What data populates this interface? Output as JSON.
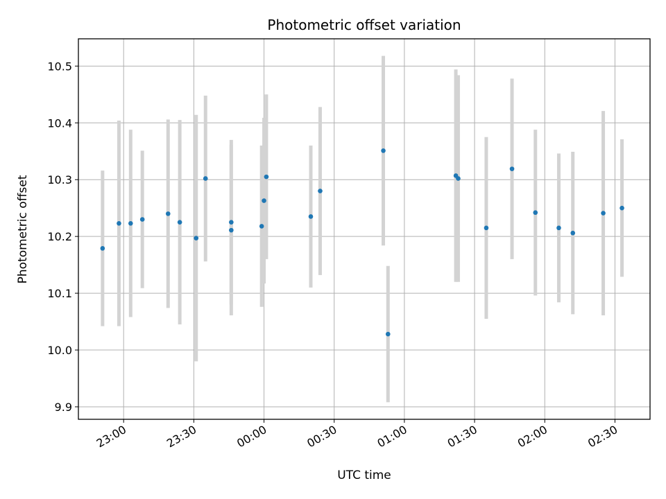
{
  "chart_data": {
    "type": "scatter",
    "title": "Photometric offset variation",
    "xlabel": "UTC time",
    "ylabel": "Photometric offset",
    "x_axis": {
      "kind": "time",
      "reference_date": "2000-01-01",
      "range": [
        "2000-01-01T22:40:40",
        "2000-01-02T02:45:00"
      ],
      "ticks": [
        {
          "value": "2000-01-01T23:00",
          "label": "23:00"
        },
        {
          "value": "2000-01-01T23:30",
          "label": "23:30"
        },
        {
          "value": "2000-01-02T00:00",
          "label": "00:00"
        },
        {
          "value": "2000-01-02T00:30",
          "label": "00:30"
        },
        {
          "value": "2000-01-02T01:00",
          "label": "01:00"
        },
        {
          "value": "2000-01-02T01:30",
          "label": "01:30"
        },
        {
          "value": "2000-01-02T02:00",
          "label": "02:00"
        },
        {
          "value": "2000-01-02T02:30",
          "label": "02:30"
        }
      ]
    },
    "y_axis": {
      "range": [
        9.878,
        10.548
      ],
      "ticks": [
        9.9,
        10.0,
        10.1,
        10.2,
        10.3,
        10.4,
        10.5
      ],
      "tick_labels": [
        "9.9",
        "10.0",
        "10.1",
        "10.2",
        "10.3",
        "10.4",
        "10.5"
      ]
    },
    "grid": true,
    "colors": {
      "point": "#1f77b4",
      "errorbar": "#d3d3d3",
      "grid": "#b0b0b0"
    },
    "series": [
      {
        "points": [
          {
            "x": "2000-01-01T22:51",
            "y": 10.179,
            "err": 0.137
          },
          {
            "x": "2000-01-01T22:58",
            "y": 10.223,
            "err": 0.181
          },
          {
            "x": "2000-01-01T23:03",
            "y": 10.223,
            "err": 0.165
          },
          {
            "x": "2000-01-01T23:08",
            "y": 10.23,
            "err": 0.121
          },
          {
            "x": "2000-01-01T23:19",
            "y": 10.24,
            "err": 0.166
          },
          {
            "x": "2000-01-01T23:24",
            "y": 10.225,
            "err": 0.18
          },
          {
            "x": "2000-01-01T23:31",
            "y": 10.197,
            "err": 0.217
          },
          {
            "x": "2000-01-01T23:35",
            "y": 10.302,
            "err": 0.146
          },
          {
            "x": "2000-01-01T23:46",
            "y": 10.211,
            "err": 0.15
          },
          {
            "x": "2000-01-01T23:46",
            "y": 10.225,
            "err": 0.145
          },
          {
            "x": "2000-01-01T23:59",
            "y": 10.218,
            "err": 0.142
          },
          {
            "x": "2000-01-02T00:00",
            "y": 10.263,
            "err": 0.146
          },
          {
            "x": "2000-01-02T00:01",
            "y": 10.305,
            "err": 0.145
          },
          {
            "x": "2000-01-02T00:20",
            "y": 10.235,
            "err": 0.125
          },
          {
            "x": "2000-01-02T00:24",
            "y": 10.28,
            "err": 0.148
          },
          {
            "x": "2000-01-02T00:51",
            "y": 10.351,
            "err": 0.167
          },
          {
            "x": "2000-01-02T00:53",
            "y": 10.028,
            "err": 0.12
          },
          {
            "x": "2000-01-02T01:22",
            "y": 10.307,
            "err": 0.187
          },
          {
            "x": "2000-01-02T01:23",
            "y": 10.302,
            "err": 0.182
          },
          {
            "x": "2000-01-02T01:35",
            "y": 10.215,
            "err": 0.16
          },
          {
            "x": "2000-01-02T01:46",
            "y": 10.319,
            "err": 0.159
          },
          {
            "x": "2000-01-02T01:56",
            "y": 10.242,
            "err": 0.146
          },
          {
            "x": "2000-01-02T02:06",
            "y": 10.215,
            "err": 0.131
          },
          {
            "x": "2000-01-02T02:12",
            "y": 10.206,
            "err": 0.143
          },
          {
            "x": "2000-01-02T02:25",
            "y": 10.241,
            "err": 0.18
          },
          {
            "x": "2000-01-02T02:33",
            "y": 10.25,
            "err": 0.121
          }
        ]
      }
    ]
  }
}
